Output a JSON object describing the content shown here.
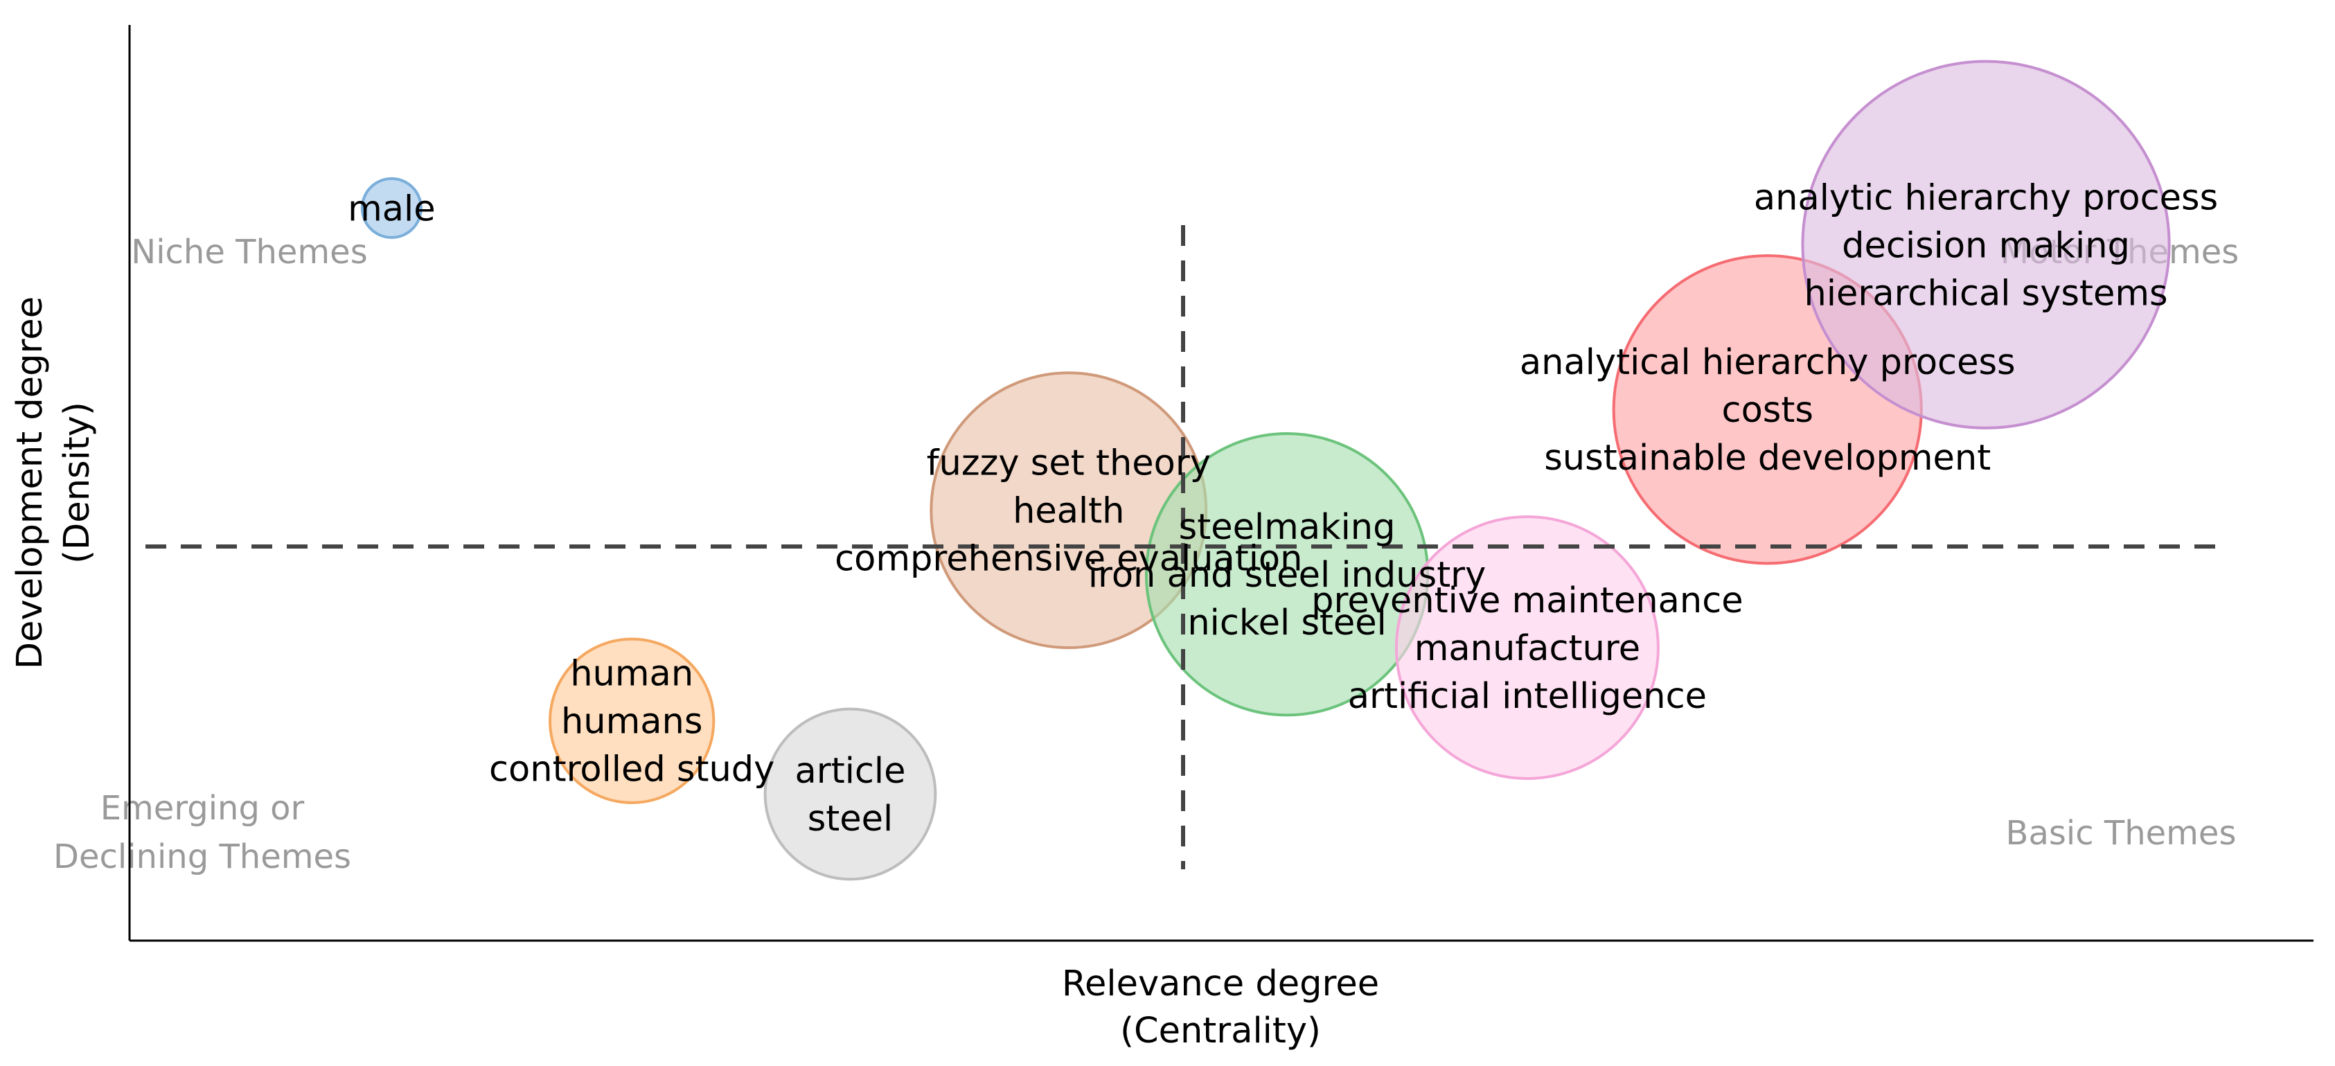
{
  "chart_data": {
    "type": "scatter",
    "subtype": "thematic-map-bubble",
    "xlabel": [
      "Relevance degree",
      "(Centrality)"
    ],
    "ylabel": [
      "Development degree",
      "(Density)"
    ],
    "quadrant_labels": {
      "top_left": "Niche Themes",
      "top_right": "Motor Themes",
      "bottom_left": [
        "Emerging or",
        "Declining Themes"
      ],
      "bottom_right": "Basic Themes"
    },
    "grid": false,
    "reference_lines": {
      "style": "dashed"
    },
    "bubbles": [
      {
        "labels": [
          "male"
        ],
        "color": "#9ec5e8",
        "stroke": "#7aaedb",
        "centrality": 0.12,
        "density": 0.8,
        "size": 0.09
      },
      {
        "labels": [
          "human",
          "humans",
          "controlled study"
        ],
        "color": "#ffcc99",
        "stroke": "#f5a860",
        "centrality": 0.23,
        "density": 0.24,
        "size": 0.25
      },
      {
        "labels": [
          "article",
          "steel"
        ],
        "color": "#d9d9d9",
        "stroke": "#bdbdbd",
        "centrality": 0.33,
        "density": 0.16,
        "size": 0.26
      },
      {
        "labels": [
          "fuzzy set theory",
          "health",
          "comprehensive evaluation"
        ],
        "color": "#e9c0a8",
        "stroke": "#d09a7a",
        "centrality": 0.43,
        "density": 0.47,
        "size": 0.42
      },
      {
        "labels": [
          "steelmaking",
          "iron and steel industry",
          "nickel steel"
        ],
        "color": "#a6deb0",
        "stroke": "#6cc37c",
        "centrality": 0.53,
        "density": 0.4,
        "size": 0.43
      },
      {
        "labels": [
          "preventive maintenance",
          "manufacture",
          "artificial intelligence"
        ],
        "color": "#fdd0ec",
        "stroke": "#f5a6d8",
        "centrality": 0.64,
        "density": 0.32,
        "size": 0.4
      },
      {
        "labels": [
          "analytical hierarchy process",
          "costs",
          "sustainable development"
        ],
        "color": "#ffa3a6",
        "stroke": "#f56c72",
        "centrality": 0.75,
        "density": 0.58,
        "size": 0.47
      },
      {
        "labels": [
          "analytic hierarchy process",
          "decision making",
          "hierarchical systems"
        ],
        "color": "#dbbbe0",
        "stroke": "#c58fd0",
        "centrality": 0.85,
        "density": 0.76,
        "size": 0.56
      }
    ]
  }
}
